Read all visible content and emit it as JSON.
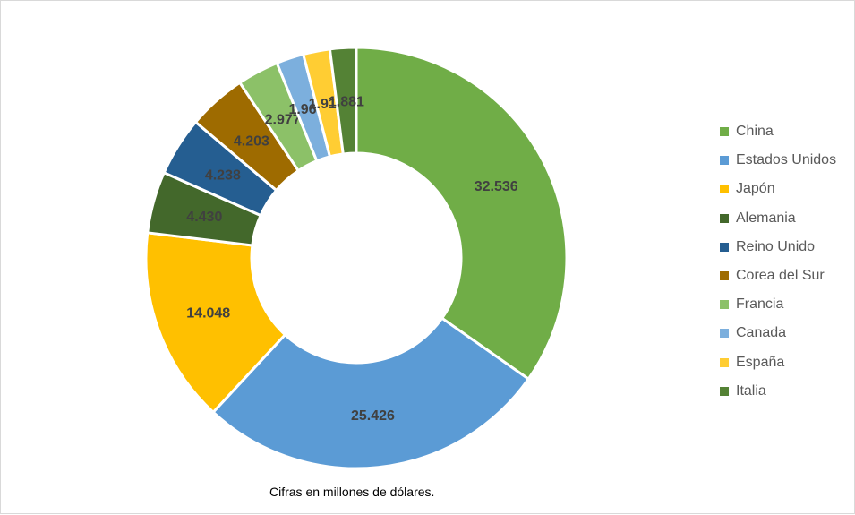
{
  "chart_data": {
    "type": "pie",
    "donut": true,
    "categories": [
      "China",
      "Estados Unidos",
      "Japón",
      "Alemania",
      "Reino Unido",
      "Corea del Sur",
      "Francia",
      "Canada",
      "España",
      "Italia"
    ],
    "values": [
      32536,
      25426,
      14048,
      4430,
      4238,
      4203,
      2977,
      1968,
      1918,
      1881
    ],
    "data_labels": [
      "32.536",
      "25.426",
      "14.048",
      "4.430",
      "4.238",
      "4.203",
      "2.977",
      "1.968",
      "1.918",
      "1.881"
    ],
    "colors": [
      "#70ad47",
      "#5b9bd5",
      "#ffc000",
      "#43682b",
      "#255e91",
      "#9e6b00",
      "#8cc168",
      "#7cafdd",
      "#ffcd33",
      "#548235"
    ],
    "legend_position": "right",
    "caption": "Cifras en millones de dólares."
  }
}
